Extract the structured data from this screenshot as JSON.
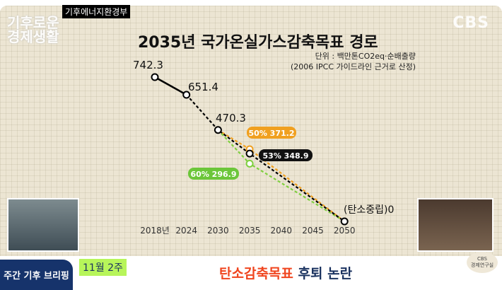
{
  "badge": "기후에너지환경부",
  "logo": {
    "line1": "기후로운",
    "line2": "경제생활"
  },
  "channel": "CBS",
  "chart_data": {
    "type": "line",
    "title": "2035년 국가온실가스감축목표 경로",
    "unit_line1": "단위 : 백만톤CO2eq·순배출량",
    "unit_line2": "(2006 IPCC 가이드라인 근거로 산정)",
    "categories": [
      "2018년",
      "2024",
      "2030",
      "2035",
      "2040",
      "2045",
      "2050"
    ],
    "ylim": [
      0,
      742.3
    ],
    "series": [
      {
        "name": "actual",
        "color": "#000000",
        "style": "solid",
        "points": [
          [
            0,
            742.3
          ],
          [
            1,
            651.4
          ]
        ],
        "labels": [
          "742.3",
          "651.4"
        ]
      },
      {
        "name": "path",
        "color": "#000000",
        "style": "dashed",
        "points": [
          [
            1,
            651.4
          ],
          [
            2,
            470.3
          ],
          [
            3,
            348.9
          ],
          [
            6,
            0
          ]
        ],
        "labels": [
          "",
          "470.3",
          "53% 348.9",
          "(탄소중립)0"
        ]
      },
      {
        "name": "50%",
        "color": "#f0a020",
        "style": "dashed",
        "points": [
          [
            2,
            470.3
          ],
          [
            3,
            371.2
          ],
          [
            6,
            0
          ]
        ],
        "labels": [
          "",
          "50% 371.2",
          ""
        ]
      },
      {
        "name": "60%",
        "color": "#7fcf3f",
        "style": "dashed",
        "points": [
          [
            2,
            470.3
          ],
          [
            3,
            296.9
          ],
          [
            6,
            0
          ]
        ],
        "labels": [
          "",
          "60% 296.9",
          ""
        ]
      }
    ]
  },
  "lower_third": {
    "segment": "주간 기후 브리핑",
    "week": "11월 2주",
    "headline_red": "탄소감축목표",
    "headline_blue": "후퇴 논란",
    "seal_top": "CBS",
    "seal": "경제연구실"
  }
}
